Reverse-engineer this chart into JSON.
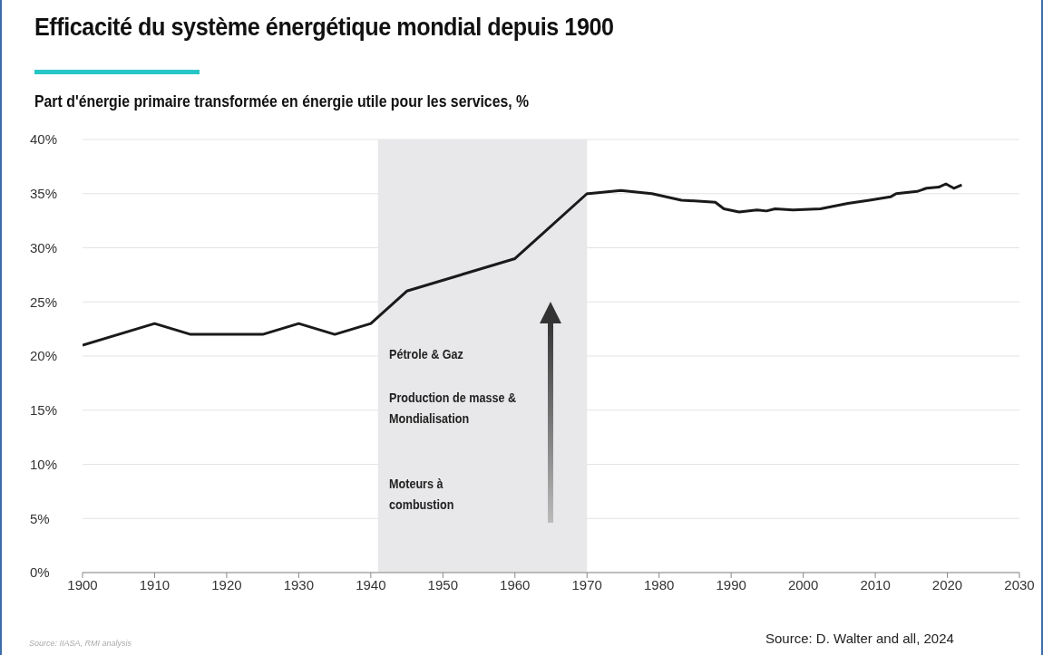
{
  "chart_data": {
    "type": "line",
    "title": "Efficacité du système énergétique mondial depuis 1900",
    "subtitle": "Part d'énergie primaire transformée en énergie utile pour les services, %",
    "series": [
      {
        "color": "#1a1a1a",
        "x": [
          1900,
          1910,
          1915,
          1925,
          1930,
          1935,
          1940,
          1945,
          1960,
          1970,
          1970.2,
          1974.7,
          1979,
          1983.1,
          1987.8,
          1989,
          1991.1,
          1993.6,
          1994.9,
          1996.1,
          1998.6,
          2002.4,
          2006.2,
          2009.2,
          2012.1,
          2012.9,
          2015.8,
          2017.1,
          2018.8,
          2019.8,
          2020.9,
          2022
        ],
        "values": [
          21,
          23,
          22,
          22,
          23,
          22,
          23,
          26,
          29,
          35,
          35.0,
          35.3,
          35.0,
          34.4,
          34.2,
          33.6,
          33.3,
          33.5,
          33.4,
          33.6,
          33.5,
          33.6,
          34.1,
          34.4,
          34.7,
          35.0,
          35.2,
          35.5,
          35.6,
          35.9,
          35.5,
          35.8
        ]
      }
    ],
    "xlim": [
      1900,
      2030
    ],
    "xticks": [
      1900,
      1910,
      1920,
      1930,
      1940,
      1950,
      1960,
      1970,
      1980,
      1990,
      2000,
      2010,
      2020,
      2030
    ],
    "ylim": [
      0,
      40
    ],
    "yticks": [
      {
        "value": 0,
        "label": "0%"
      },
      {
        "value": 5,
        "label": "5%"
      },
      {
        "value": 10,
        "label": "10%"
      },
      {
        "value": 15,
        "label": "15%"
      },
      {
        "value": 20,
        "label": "20%"
      },
      {
        "value": 25,
        "label": "25%"
      },
      {
        "value": 30,
        "label": "30%"
      },
      {
        "value": 35,
        "label": "35%"
      },
      {
        "value": 40,
        "label": "40%"
      }
    ],
    "grid": "y",
    "legend": false,
    "line_style": "solid",
    "marker": "none",
    "bands": [
      {
        "axis": "x",
        "from": 1941,
        "to": 1970,
        "color": "#e8e8ea"
      }
    ],
    "annotations": [
      "Pétrole & Gaz",
      "Production de masse & Mondialisation",
      "Moteurs à combustion",
      "Source: IIASA, RMI analysis",
      "Source: D. Walter and all, 2024"
    ]
  }
}
